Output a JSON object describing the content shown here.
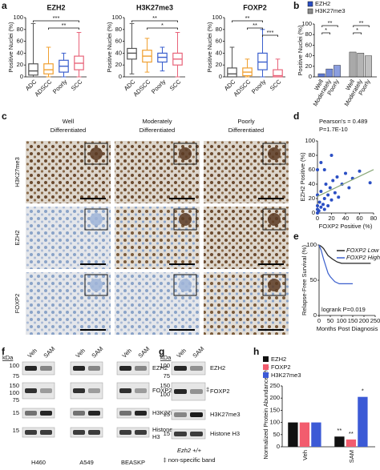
{
  "panel_labels": [
    "a",
    "b",
    "c",
    "d",
    "e",
    "f",
    "g",
    "h"
  ],
  "chart_data": [
    {
      "type": "box",
      "title": "EZH2",
      "y_label": "Positive Nuclei (%)",
      "categories": [
        "ADC",
        "ADSCC",
        "Poorly",
        "SCC"
      ],
      "colors": [
        "#555555",
        "#f0a030",
        "#3a5fcd",
        "#e8647a"
      ],
      "boxes": [
        {
          "min": 0,
          "q1": 3,
          "median": 10,
          "q3": 22,
          "max": 90
        },
        {
          "min": 0,
          "q1": 5,
          "median": 12,
          "q3": 22,
          "max": 50
        },
        {
          "min": 0,
          "q1": 8,
          "median": 18,
          "q3": 28,
          "max": 40
        },
        {
          "min": 0,
          "q1": 12,
          "median": 23,
          "q3": 35,
          "max": 75
        }
      ],
      "ylim": [
        0,
        100
      ],
      "yticks": [
        0,
        20,
        40,
        60,
        80,
        100
      ],
      "annotations": [
        "***",
        "**"
      ]
    },
    {
      "type": "box",
      "title": "H3K27me3",
      "y_label": "Positive Nuclei (%)",
      "categories": [
        "ADC",
        "ADSCC",
        "Poorly",
        "SCC"
      ],
      "colors": [
        "#555555",
        "#f0a030",
        "#3a5fcd",
        "#e8647a"
      ],
      "boxes": [
        {
          "min": 5,
          "q1": 30,
          "median": 40,
          "q3": 48,
          "max": 90
        },
        {
          "min": 8,
          "q1": 25,
          "median": 35,
          "q3": 45,
          "max": 65
        },
        {
          "min": 10,
          "q1": 25,
          "median": 33,
          "q3": 40,
          "max": 50
        },
        {
          "min": 0,
          "q1": 20,
          "median": 30,
          "q3": 40,
          "max": 75
        }
      ],
      "ylim": [
        0,
        100
      ],
      "yticks": [
        0,
        20,
        40,
        60,
        80,
        100
      ],
      "annotations": [
        "**",
        "*"
      ]
    },
    {
      "type": "box",
      "title": "FOXP2",
      "y_label": "Positive Nuclei (%)",
      "categories": [
        "ADC",
        "ADSCC",
        "Poorly",
        "SCC"
      ],
      "colors": [
        "#555555",
        "#f0a030",
        "#3a5fcd",
        "#e8647a"
      ],
      "boxes": [
        {
          "min": 0,
          "q1": 0,
          "median": 5,
          "q3": 15,
          "max": 50
        },
        {
          "min": 0,
          "q1": 2,
          "median": 8,
          "q3": 15,
          "max": 30
        },
        {
          "min": 0,
          "q1": 12,
          "median": 25,
          "q3": 40,
          "max": 80
        },
        {
          "min": 0,
          "q1": 0,
          "median": 2,
          "q3": 12,
          "max": 30
        }
      ],
      "ylim": [
        0,
        100
      ],
      "yticks": [
        0,
        20,
        40,
        60,
        80,
        100
      ],
      "annotations": [
        "**",
        "**",
        "***"
      ]
    },
    {
      "type": "bar",
      "y_label": "Positive Nuclei (%)",
      "categories": [
        "Well",
        "Moderately",
        "Poorly"
      ],
      "series": [
        {
          "name": "EZH2",
          "color": "#2b4fc4",
          "values": [
            6,
            15,
            22
          ]
        },
        {
          "name": "H3K27me3",
          "color": "#8c8c8c",
          "values": [
            47,
            45,
            40
          ]
        }
      ],
      "ylim": [
        0,
        100
      ],
      "yticks": [
        0,
        20,
        40,
        60,
        80,
        100
      ],
      "annotations": [
        "**",
        "*",
        "**",
        "*"
      ]
    },
    {
      "type": "scatter",
      "annotations": [
        "Pearson's = 0.489",
        "P=1.7E-10"
      ],
      "x_label": "FOXP2 Positive (%)",
      "y_label": "EZH2 Positive (%)",
      "x": [
        0,
        0,
        0,
        0,
        2,
        3,
        5,
        5,
        8,
        10,
        10,
        12,
        15,
        15,
        18,
        20,
        22,
        25,
        28,
        30,
        35,
        40,
        45,
        50,
        60,
        75,
        0,
        5,
        10,
        20
      ],
      "y": [
        0,
        5,
        10,
        25,
        3,
        15,
        8,
        30,
        12,
        5,
        20,
        40,
        10,
        25,
        35,
        18,
        45,
        28,
        50,
        22,
        40,
        55,
        35,
        48,
        58,
        42,
        60,
        70,
        60,
        80
      ],
      "color": "#2b4fc4",
      "trend_color": "#8aa878",
      "xlim": [
        0,
        80
      ],
      "ylim": [
        0,
        100
      ],
      "xticks": [
        0,
        20,
        40,
        60,
        80
      ],
      "yticks": [
        0,
        20,
        40,
        60,
        80,
        100
      ]
    },
    {
      "type": "line",
      "x_label": "Months Post Diagnosis",
      "y_label": "Relapse-Free Survival (%)",
      "annotation": "logrank P=0.019",
      "series": [
        {
          "name": "FOXP2 Low",
          "color": "#222222",
          "x": [
            0,
            10,
            20,
            30,
            40,
            60,
            80,
            100,
            150,
            200,
            230
          ],
          "values": [
            100,
            98,
            95,
            90,
            85,
            80,
            76,
            74,
            74,
            74,
            74
          ]
        },
        {
          "name": "FOXP2 High",
          "color": "#3a5fcd",
          "x": [
            0,
            10,
            20,
            30,
            40,
            50,
            70,
            90,
            120,
            150
          ],
          "values": [
            100,
            92,
            80,
            70,
            60,
            55,
            48,
            45,
            45,
            45
          ]
        }
      ],
      "xlim": [
        0,
        250
      ],
      "xticks": [
        0,
        50,
        100,
        150,
        200,
        250
      ],
      "ylim": [
        0,
        100
      ],
      "yticks": [
        0,
        50,
        100
      ]
    },
    {
      "type": "bar",
      "y_label": "Normalized Protein Abundance (%)",
      "categories": [
        "Veh",
        "SAM"
      ],
      "series": [
        {
          "name": "EZH2",
          "color": "#111111",
          "values": [
            100,
            42
          ]
        },
        {
          "name": "FOXP2",
          "color": "#f25c6e",
          "values": [
            100,
            30
          ]
        },
        {
          "name": "H3K27me3",
          "color": "#3c5ad6",
          "values": [
            100,
            205
          ]
        }
      ],
      "ylim": [
        0,
        250
      ],
      "yticks": [
        0,
        50,
        100,
        150,
        200,
        250
      ],
      "annotations": [
        "**",
        "**",
        "*"
      ]
    }
  ],
  "micrographs": {
    "columns": [
      [
        "Well",
        "Differentiated"
      ],
      [
        "Moderately",
        "Differentiated"
      ],
      [
        "Poorly",
        "Differentiated"
      ]
    ],
    "rows": [
      "H3K27me3",
      "EZH2",
      "FOXP2"
    ]
  },
  "blots_f": {
    "kda_label": "kDa",
    "markers": [
      100,
      75,
      150,
      100,
      75,
      15,
      15
    ],
    "lanes": [
      "Veh",
      "SAM"
    ],
    "cell_lines": [
      "H460",
      "A549",
      "BEASKP"
    ],
    "proteins": [
      "EZH2",
      "FOXP2",
      "H3K27me3",
      [
        "Histone",
        "H3"
      ]
    ]
  },
  "blots_g": {
    "kda_label": "kDa",
    "markers": [
      100,
      75,
      150,
      100,
      15,
      15
    ],
    "lanes": [
      "Veh",
      "SAM"
    ],
    "band_marker": "‡",
    "proteins": [
      "EZH2",
      "FOXP2",
      "H3K27me3",
      "Histone H3"
    ],
    "genotype": "Ezh2 +/+",
    "footnote": "‡ non-specific band"
  }
}
